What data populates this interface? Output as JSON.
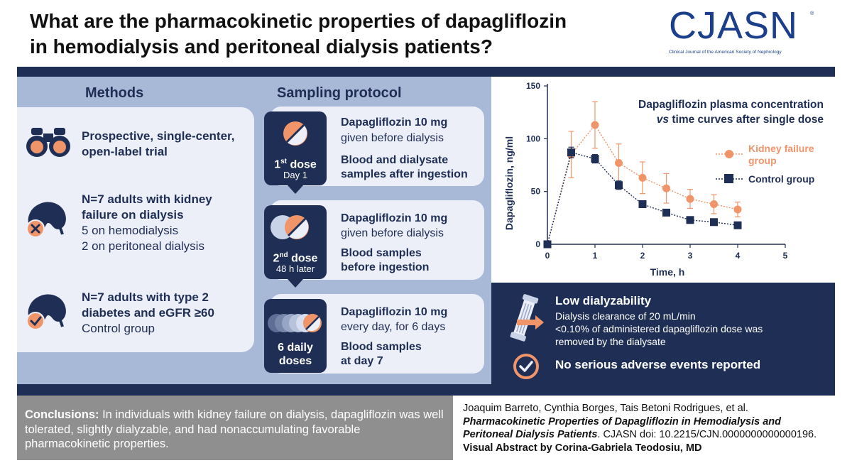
{
  "header": {
    "title_line1": "What are the pharmacokinetic properties of dapagliflozin",
    "title_line2": "in hemodialysis and peritoneal dialysis patients?",
    "logo": "CJASN",
    "logo_subtitle": "Clinical Journal of the American Society of Nephrology",
    "logo_reg": "®"
  },
  "methods": {
    "title": "Methods",
    "item1": {
      "line1": "Prospective, single-center,",
      "line2": "open-label trial",
      "icon": "binoculars-icon"
    },
    "item2": {
      "line1": "N=7 adults with kidney",
      "line2": "failure on dialysis",
      "line3": "5 on hemodialysis",
      "line4": "2 on peritoneal dialysis",
      "icon": "kidney-failure-icon"
    },
    "item3": {
      "line1": "N=7 adults with type 2",
      "line2": "diabetes and eGFR ≥60",
      "line3": "Control group",
      "icon": "kidney-check-icon"
    }
  },
  "sampling": {
    "title": "Sampling protocol",
    "dose1": {
      "label": "1",
      "sup": "st",
      "label_rest": " dose",
      "sub": "Day 1",
      "head1": "Dapagliflozin 10 mg",
      "norm1": "given before dialysis",
      "head2": "Blood and dialysate",
      "head3": "samples after ingestion"
    },
    "dose2": {
      "label": "2",
      "sup": "nd",
      "label_rest": " dose",
      "sub": "48 h later",
      "head1": "Dapagliflozin 10 mg",
      "norm1": "given before dialysis",
      "head2": "Blood samples",
      "head3": "before ingestion"
    },
    "dose3": {
      "label1": "6 daily",
      "label2": "doses",
      "head1": "Dapagliflozin 10 mg",
      "norm1": "every day, for 6 days",
      "head2": "Blood samples",
      "head3": "at day 7"
    }
  },
  "chart_data": {
    "type": "line",
    "title_line1": "Dapagliflozin plasma concentration",
    "title_line2_em": "vs",
    "title_line2_rest": " time curves after single dose",
    "xlabel": "Time, h",
    "ylabel": "Dapagliflozin, ng/ml",
    "xlim": [
      0,
      5
    ],
    "ylim": [
      0,
      150
    ],
    "xticks": [
      0,
      1,
      2,
      3,
      4,
      5
    ],
    "yticks": [
      0,
      50,
      100,
      150
    ],
    "series": [
      {
        "name": "Kidney failure group",
        "legend_line1": "Kidney failure",
        "legend_line2": "group",
        "color": "#f0956a",
        "x": [
          0,
          0.5,
          1,
          1.5,
          2,
          2.5,
          3,
          3.5,
          4
        ],
        "y": [
          0,
          85,
          113,
          77,
          63,
          53,
          43,
          38,
          33
        ],
        "err": [
          0,
          22,
          22,
          18,
          15,
          14,
          9,
          9,
          7
        ]
      },
      {
        "name": "Control group",
        "legend_line1": "Control group",
        "color": "#1f2e55",
        "x": [
          0,
          0.5,
          1,
          1.5,
          2,
          2.5,
          3,
          3.5,
          4
        ],
        "y": [
          0,
          87,
          81,
          56,
          38,
          30,
          23,
          21,
          18
        ],
        "err": [
          0,
          5,
          4,
          4,
          2,
          2,
          2,
          2,
          2
        ]
      }
    ]
  },
  "dialyzability": {
    "title": "Low dialyzability",
    "line1": "Dialysis clearance of 20 mL/min",
    "line2": "<0.10% of administered dapagliflozin dose was",
    "line3": "removed by the dialysate",
    "adverse": "No serious adverse events reported"
  },
  "footer": {
    "conclusions_label": "Conclusions:",
    "conclusions_text": " In individuals with kidney failure on dialysis, dapagliflozin was well tolerated, slightly dialyzable, and had nonaccumulating favorable pharmacokinetic properties.",
    "authors": "Joaquim Barreto, Cynthia Borges, Tais Betoni Rodrigues, et al.",
    "article_title": "Pharmacokinetic Properties of Dapagliflozin in Hemodialysis and Peritoneal Dialysis Patients",
    "doi": ". CJASN doi: 10.2215/CJN.0000000000000196.",
    "visual_credit": "Visual Abstract by Corina-Gabriela Teodosiu, MD"
  },
  "colors": {
    "navy": "#1f2e55",
    "orange": "#f0956a",
    "panel": "#a8b8d7",
    "card": "#eceff7",
    "gray": "#8f8f8f"
  }
}
